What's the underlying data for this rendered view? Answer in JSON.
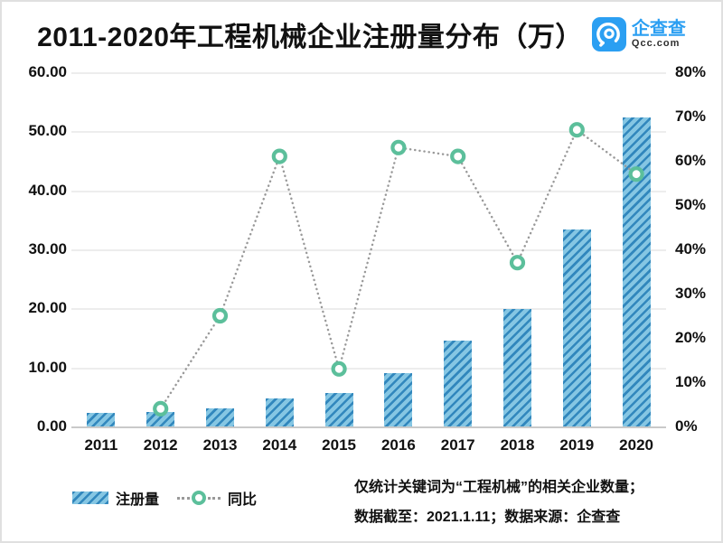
{
  "title": "2011-2020年工程机械企业注册量分布（万）",
  "logo": {
    "name": "企查查",
    "domain": "Qcc.com",
    "icon": "qcc-spiral-q-icon"
  },
  "legend": {
    "bar_label": "注册量",
    "line_label": "同比"
  },
  "footnote": {
    "line1": "仅统计关键词为“工程机械”的相关企业数量；",
    "line2": "数据截至：2021.1.11；数据来源：企查查"
  },
  "colors": {
    "bar_light": "#85C6E3",
    "bar_stripe": "#3187BD",
    "marker": "#5CBF9B",
    "line": "#999999",
    "grid": "#EDEDED",
    "axis": "#C9C9C9",
    "brand_blue": "#2B9FF2",
    "text": "#111111"
  },
  "chart_data": {
    "type": "bar",
    "title": "2011-2020年工程机械企业注册量分布（万）",
    "categories": [
      "2011",
      "2012",
      "2013",
      "2014",
      "2015",
      "2016",
      "2017",
      "2018",
      "2019",
      "2020"
    ],
    "series": [
      {
        "name": "注册量",
        "type": "bar",
        "axis": "left",
        "unit": "万",
        "values": [
          2.3,
          2.4,
          3.0,
          4.8,
          5.6,
          9.0,
          14.5,
          19.9,
          33.3,
          52.4
        ]
      },
      {
        "name": "同比",
        "type": "line",
        "axis": "right",
        "unit": "%",
        "values": [
          null,
          4,
          25,
          61,
          13,
          63,
          61,
          37,
          67,
          57
        ]
      }
    ],
    "left_axis": {
      "min": 0,
      "max": 60,
      "step": 10,
      "ticks": [
        "60.00",
        "50.00",
        "40.00",
        "30.00",
        "20.00",
        "10.00",
        "0.00"
      ]
    },
    "right_axis": {
      "min": 0,
      "max": 80,
      "step": 10,
      "ticks": [
        "80%",
        "70%",
        "60%",
        "50%",
        "40%",
        "30%",
        "20%",
        "10%",
        "0%"
      ]
    },
    "grid": true,
    "legend_position": "bottom-left"
  }
}
